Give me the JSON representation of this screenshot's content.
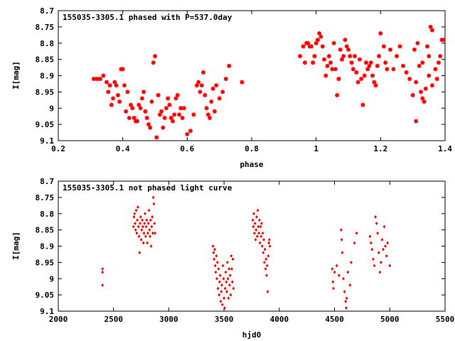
{
  "chart_data": [
    {
      "type": "scatter",
      "title": "155035-3305.1 phased with P=537.0day",
      "xlabel": "phase",
      "ylabel": "I[mag]",
      "xlim": [
        0.2,
        1.4
      ],
      "ylim": [
        9.1,
        8.7
      ],
      "y_inverted": true,
      "x_ticks": [
        "0.2",
        "0.4",
        "0.6",
        "0.8",
        "1",
        "1.2",
        "1.4"
      ],
      "y_ticks": [
        "8.7",
        "8.75",
        "8.8",
        "8.85",
        "8.9",
        "8.95",
        "9",
        "9.05",
        "9.1"
      ],
      "marker_color": "#ff0000",
      "marker": "star",
      "grid": false,
      "points": [
        [
          0.31,
          8.91
        ],
        [
          0.32,
          8.91
        ],
        [
          0.33,
          8.91
        ],
        [
          0.34,
          8.9
        ],
        [
          0.35,
          8.92
        ],
        [
          0.355,
          8.95
        ],
        [
          0.36,
          8.93
        ],
        [
          0.365,
          8.99
        ],
        [
          0.37,
          8.97
        ],
        [
          0.375,
          8.92
        ],
        [
          0.38,
          8.93
        ],
        [
          0.385,
          8.96
        ],
        [
          0.39,
          8.98
        ],
        [
          0.395,
          8.88
        ],
        [
          0.4,
          8.88
        ],
        [
          0.405,
          8.93
        ],
        [
          0.41,
          9.01
        ],
        [
          0.415,
          8.95
        ],
        [
          0.42,
          9.03
        ],
        [
          0.425,
          8.99
        ],
        [
          0.43,
          9.0
        ],
        [
          0.435,
          9.03
        ],
        [
          0.44,
          9.04
        ],
        [
          0.445,
          9.04
        ],
        [
          0.45,
          8.99
        ],
        [
          0.455,
          9.0
        ],
        [
          0.46,
          8.97
        ],
        [
          0.465,
          8.95
        ],
        [
          0.47,
          9.01
        ],
        [
          0.475,
          9.03
        ],
        [
          0.48,
          9.05
        ],
        [
          0.485,
          9.06
        ],
        [
          0.49,
          8.98
        ],
        [
          0.495,
          8.86
        ],
        [
          0.5,
          8.84
        ],
        [
          0.505,
          9.09
        ],
        [
          0.51,
          8.96
        ],
        [
          0.515,
          9.02
        ],
        [
          0.52,
          9.01
        ],
        [
          0.525,
          9.06
        ],
        [
          0.53,
          9.03
        ],
        [
          0.535,
          9.0
        ],
        [
          0.54,
          8.97
        ],
        [
          0.545,
          8.99
        ],
        [
          0.55,
          9.03
        ],
        [
          0.555,
          9.04
        ],
        [
          0.56,
          9.02
        ],
        [
          0.565,
          8.97
        ],
        [
          0.57,
          8.96
        ],
        [
          0.575,
          9.02
        ],
        [
          0.58,
          9.0
        ],
        [
          0.585,
          9.03
        ],
        [
          0.59,
          9.0
        ],
        [
          0.6,
          9.08
        ],
        [
          0.61,
          9.07
        ],
        [
          0.62,
          9.02
        ],
        [
          0.63,
          8.93
        ],
        [
          0.635,
          8.92
        ],
        [
          0.64,
          8.95
        ],
        [
          0.645,
          8.93
        ],
        [
          0.65,
          8.89
        ],
        [
          0.655,
          8.96
        ],
        [
          0.66,
          9.0
        ],
        [
          0.665,
          9.02
        ],
        [
          0.67,
          9.03
        ],
        [
          0.675,
          8.98
        ],
        [
          0.68,
          8.94
        ],
        [
          0.685,
          9.01
        ],
        [
          0.69,
          8.93
        ],
        [
          0.7,
          8.97
        ],
        [
          0.71,
          8.95
        ],
        [
          0.72,
          8.91
        ],
        [
          0.73,
          8.87
        ],
        [
          0.77,
          8.92
        ],
        [
          0.95,
          8.84
        ],
        [
          0.96,
          8.81
        ],
        [
          0.965,
          8.86
        ],
        [
          0.97,
          8.8
        ],
        [
          0.975,
          8.8
        ],
        [
          0.98,
          8.81
        ],
        [
          0.985,
          8.81
        ],
        [
          0.99,
          8.86
        ],
        [
          0.995,
          8.84
        ],
        [
          1.0,
          8.8
        ],
        [
          1.005,
          8.79
        ],
        [
          1.01,
          8.77
        ],
        [
          1.015,
          8.78
        ],
        [
          1.02,
          8.81
        ],
        [
          1.025,
          8.85
        ],
        [
          1.03,
          8.9
        ],
        [
          1.035,
          8.87
        ],
        [
          1.04,
          8.84
        ],
        [
          1.045,
          8.86
        ],
        [
          1.05,
          8.88
        ],
        [
          1.055,
          8.8
        ],
        [
          1.06,
          8.88
        ],
        [
          1.065,
          8.96
        ],
        [
          1.07,
          8.91
        ],
        [
          1.075,
          8.82
        ],
        [
          1.08,
          8.85
        ],
        [
          1.085,
          8.84
        ],
        [
          1.09,
          8.79
        ],
        [
          1.095,
          8.81
        ],
        [
          1.1,
          8.82
        ],
        [
          1.105,
          8.84
        ],
        [
          1.11,
          8.86
        ],
        [
          1.115,
          8.88
        ],
        [
          1.12,
          8.84
        ],
        [
          1.125,
          8.89
        ],
        [
          1.13,
          8.92
        ],
        [
          1.135,
          8.85
        ],
        [
          1.14,
          8.91
        ],
        [
          1.145,
          8.99
        ],
        [
          1.15,
          8.9
        ],
        [
          1.155,
          8.86
        ],
        [
          1.16,
          8.88
        ],
        [
          1.165,
          8.87
        ],
        [
          1.17,
          8.86
        ],
        [
          1.175,
          8.9
        ],
        [
          1.18,
          8.92
        ],
        [
          1.185,
          8.93
        ],
        [
          1.19,
          8.87
        ],
        [
          1.195,
          8.84
        ],
        [
          1.2,
          8.77
        ],
        [
          1.21,
          8.81
        ],
        [
          1.215,
          8.86
        ],
        [
          1.22,
          8.88
        ],
        [
          1.23,
          8.82
        ],
        [
          1.24,
          8.88
        ],
        [
          1.25,
          8.84
        ],
        [
          1.26,
          8.81
        ],
        [
          1.27,
          8.87
        ],
        [
          1.28,
          8.89
        ],
        [
          1.29,
          8.91
        ],
        [
          1.3,
          8.96
        ],
        [
          1.305,
          8.82
        ],
        [
          1.31,
          8.92
        ],
        [
          1.315,
          8.8
        ],
        [
          1.32,
          8.87
        ],
        [
          1.325,
          8.95
        ],
        [
          1.33,
          8.97
        ],
        [
          1.335,
          8.98
        ],
        [
          1.34,
          8.94
        ],
        [
          1.345,
          8.81
        ],
        [
          1.35,
          8.84
        ],
        [
          1.355,
          8.75
        ],
        [
          1.36,
          8.76
        ],
        [
          1.37,
          8.88
        ],
        [
          1.375,
          8.91
        ],
        [
          1.38,
          8.86
        ],
        [
          1.385,
          8.84
        ],
        [
          1.39,
          8.79
        ],
        [
          1.395,
          8.79
        ],
        [
          1.31,
          9.04
        ],
        [
          1.33,
          8.86
        ],
        [
          1.35,
          8.9
        ],
        [
          1.36,
          8.93
        ]
      ]
    },
    {
      "type": "scatter",
      "title": "155035-3305.1 not phased light curve",
      "xlabel": "hjd0",
      "ylabel": "I[mag]",
      "xlim": [
        2000,
        5500
      ],
      "ylim": [
        9.1,
        8.7
      ],
      "y_inverted": true,
      "x_ticks": [
        "2000",
        "2500",
        "3000",
        "3500",
        "4000",
        "4500",
        "5000",
        "5500"
      ],
      "y_ticks": [
        "8.7",
        "8.75",
        "8.8",
        "8.85",
        "8.9",
        "8.95",
        "9",
        "9.05",
        "9.1"
      ],
      "marker_color": "#ff0000",
      "marker": "diamond",
      "grid": false,
      "points": [
        [
          2400,
          8.97
        ],
        [
          2400,
          8.98
        ],
        [
          2400,
          9.02
        ],
        [
          2680,
          8.84
        ],
        [
          2685,
          8.81
        ],
        [
          2690,
          8.8
        ],
        [
          2695,
          8.83
        ],
        [
          2700,
          8.85
        ],
        [
          2705,
          8.79
        ],
        [
          2710,
          8.86
        ],
        [
          2715,
          8.82
        ],
        [
          2720,
          8.78
        ],
        [
          2725,
          8.84
        ],
        [
          2730,
          8.87
        ],
        [
          2735,
          8.92
        ],
        [
          2740,
          8.83
        ],
        [
          2745,
          8.81
        ],
        [
          2750,
          8.88
        ],
        [
          2755,
          8.85
        ],
        [
          2760,
          8.82
        ],
        [
          2765,
          8.84
        ],
        [
          2770,
          8.89
        ],
        [
          2775,
          8.86
        ],
        [
          2780,
          8.83
        ],
        [
          2785,
          8.8
        ],
        [
          2790,
          8.87
        ],
        [
          2795,
          8.84
        ],
        [
          2800,
          8.82
        ],
        [
          2805,
          8.89
        ],
        [
          2810,
          8.86
        ],
        [
          2815,
          8.83
        ],
        [
          2820,
          8.79
        ],
        [
          2825,
          8.85
        ],
        [
          2830,
          8.87
        ],
        [
          2835,
          8.82
        ],
        [
          2840,
          8.9
        ],
        [
          2845,
          8.84
        ],
        [
          2850,
          8.81
        ],
        [
          2855,
          8.86
        ],
        [
          2860,
          8.75
        ],
        [
          2865,
          8.77
        ],
        [
          2870,
          8.83
        ],
        [
          2875,
          8.86
        ],
        [
          3400,
          8.9
        ],
        [
          3405,
          8.92
        ],
        [
          3410,
          8.94
        ],
        [
          3415,
          8.91
        ],
        [
          3420,
          8.96
        ],
        [
          3425,
          8.98
        ],
        [
          3430,
          8.93
        ],
        [
          3435,
          9.0
        ],
        [
          3440,
          8.95
        ],
        [
          3445,
          9.03
        ],
        [
          3450,
          8.97
        ],
        [
          3455,
          9.05
        ],
        [
          3460,
          9.01
        ],
        [
          3465,
          8.99
        ],
        [
          3470,
          9.07
        ],
        [
          3475,
          9.04
        ],
        [
          3480,
          9.02
        ],
        [
          3485,
          9.08
        ],
        [
          3490,
          8.96
        ],
        [
          3495,
          9.0
        ],
        [
          3500,
          9.06
        ],
        [
          3505,
          9.09
        ],
        [
          3510,
          9.03
        ],
        [
          3515,
          8.98
        ],
        [
          3520,
          9.01
        ],
        [
          3525,
          9.04
        ],
        [
          3530,
          8.95
        ],
        [
          3535,
          9.0
        ],
        [
          3540,
          9.06
        ],
        [
          3545,
          8.97
        ],
        [
          3550,
          9.02
        ],
        [
          3555,
          8.99
        ],
        [
          3560,
          9.05
        ],
        [
          3565,
          8.93
        ],
        [
          3570,
          8.97
        ],
        [
          3575,
          9.01
        ],
        [
          3580,
          8.94
        ],
        [
          3585,
          9.03
        ],
        [
          3760,
          8.82
        ],
        [
          3765,
          8.84
        ],
        [
          3770,
          8.8
        ],
        [
          3775,
          8.86
        ],
        [
          3780,
          8.83
        ],
        [
          3785,
          8.88
        ],
        [
          3790,
          8.85
        ],
        [
          3795,
          8.81
        ],
        [
          3800,
          8.87
        ],
        [
          3805,
          8.79
        ],
        [
          3810,
          8.84
        ],
        [
          3815,
          8.86
        ],
        [
          3820,
          8.82
        ],
        [
          3825,
          8.89
        ],
        [
          3830,
          8.84
        ],
        [
          3835,
          8.87
        ],
        [
          3840,
          8.83
        ],
        [
          3845,
          8.9
        ],
        [
          3850,
          8.86
        ],
        [
          3855,
          8.92
        ],
        [
          3860,
          8.88
        ],
        [
          3865,
          8.95
        ],
        [
          3870,
          8.91
        ],
        [
          3875,
          8.97
        ],
        [
          3880,
          8.94
        ],
        [
          3885,
          8.99
        ],
        [
          3890,
          8.96
        ],
        [
          3895,
          9.04
        ],
        [
          3900,
          8.93
        ],
        [
          3905,
          8.89
        ],
        [
          3910,
          8.88
        ],
        [
          3915,
          8.9
        ],
        [
          4480,
          8.97
        ],
        [
          4485,
          9.01
        ],
        [
          4490,
          9.03
        ],
        [
          4500,
          8.98
        ],
        [
          4520,
          8.96
        ],
        [
          4540,
          8.99
        ],
        [
          4560,
          8.85
        ],
        [
          4565,
          8.88
        ],
        [
          4570,
          8.92
        ],
        [
          4580,
          9.0
        ],
        [
          4590,
          9.04
        ],
        [
          4600,
          9.07
        ],
        [
          4605,
          9.09
        ],
        [
          4610,
          9.06
        ],
        [
          4620,
          8.98
        ],
        [
          4640,
          9.02
        ],
        [
          4650,
          8.95
        ],
        [
          4680,
          8.89
        ],
        [
          4700,
          8.86
        ],
        [
          4820,
          8.87
        ],
        [
          4830,
          8.89
        ],
        [
          4840,
          8.91
        ],
        [
          4850,
          8.94
        ],
        [
          4860,
          8.96
        ],
        [
          4870,
          8.81
        ],
        [
          4880,
          8.83
        ],
        [
          4890,
          8.86
        ],
        [
          4900,
          8.92
        ],
        [
          4910,
          8.98
        ],
        [
          4920,
          8.95
        ],
        [
          4930,
          8.88
        ],
        [
          4940,
          8.91
        ],
        [
          4950,
          8.84
        ],
        [
          4960,
          8.9
        ],
        [
          4970,
          8.93
        ],
        [
          4980,
          8.89
        ],
        [
          5000,
          8.96
        ]
      ]
    }
  ]
}
